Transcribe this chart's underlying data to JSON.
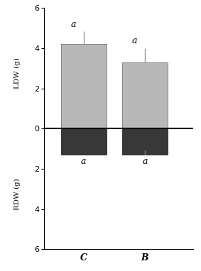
{
  "categories": [
    "C",
    "B"
  ],
  "ldw_values": [
    4.2,
    3.3
  ],
  "rdw_values": [
    -1.3,
    -1.3
  ],
  "ldw_errors": [
    0.65,
    0.72
  ],
  "rdw_errors": [
    0.0,
    0.22
  ],
  "ldw_color": "#b8b8b8",
  "rdw_color": "#383838",
  "bar_width": 0.52,
  "ylim": [
    -6,
    6
  ],
  "yticks": [
    -6,
    -4,
    -2,
    0,
    2,
    4,
    6
  ],
  "ytick_labels": [
    "6",
    "4",
    "2",
    "0",
    "2",
    "4",
    "6"
  ],
  "xlabel_fontsize": 9,
  "ylabel_fontsize": 7.5,
  "tick_fontsize": 8,
  "ldw_label_y": "LDW (g)",
  "rdw_label_y": "RDW (g)",
  "sig_label_ldw": [
    "a",
    "a"
  ],
  "sig_label_rdw": [
    "a",
    "a"
  ],
  "background_color": "#ffffff",
  "zero_line_color": "#000000",
  "x_positions": [
    0.35,
    1.05
  ],
  "xlim": [
    -0.1,
    1.6
  ]
}
